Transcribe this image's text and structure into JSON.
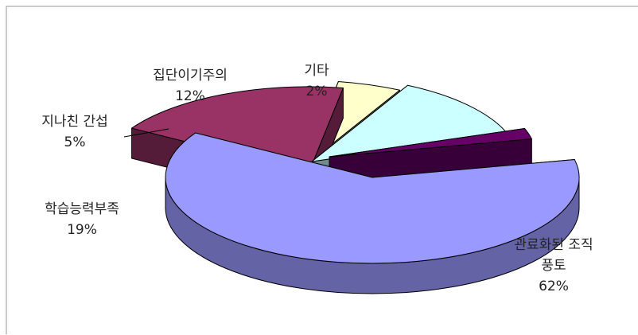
{
  "chart_data": {
    "type": "pie",
    "title": "",
    "three_d": true,
    "exploded": true,
    "legend": "none",
    "slices": [
      {
        "label_lines": [
          "관료화된 조직",
          "풍토"
        ],
        "value": 62,
        "value_label": "62%",
        "color": "#9999FF"
      },
      {
        "label_lines": [
          "학습능력부족"
        ],
        "value": 19,
        "value_label": "19%",
        "color": "#993366"
      },
      {
        "label_lines": [
          "지나친 간섭"
        ],
        "value": 5,
        "value_label": "5%",
        "color": "#FFFFCC"
      },
      {
        "label_lines": [
          "집단이기주의"
        ],
        "value": 12,
        "value_label": "12%",
        "color": "#CCFFFF"
      },
      {
        "label_lines": [
          "기타"
        ],
        "value": 2,
        "value_label": "2%",
        "color": "#660066"
      }
    ]
  }
}
